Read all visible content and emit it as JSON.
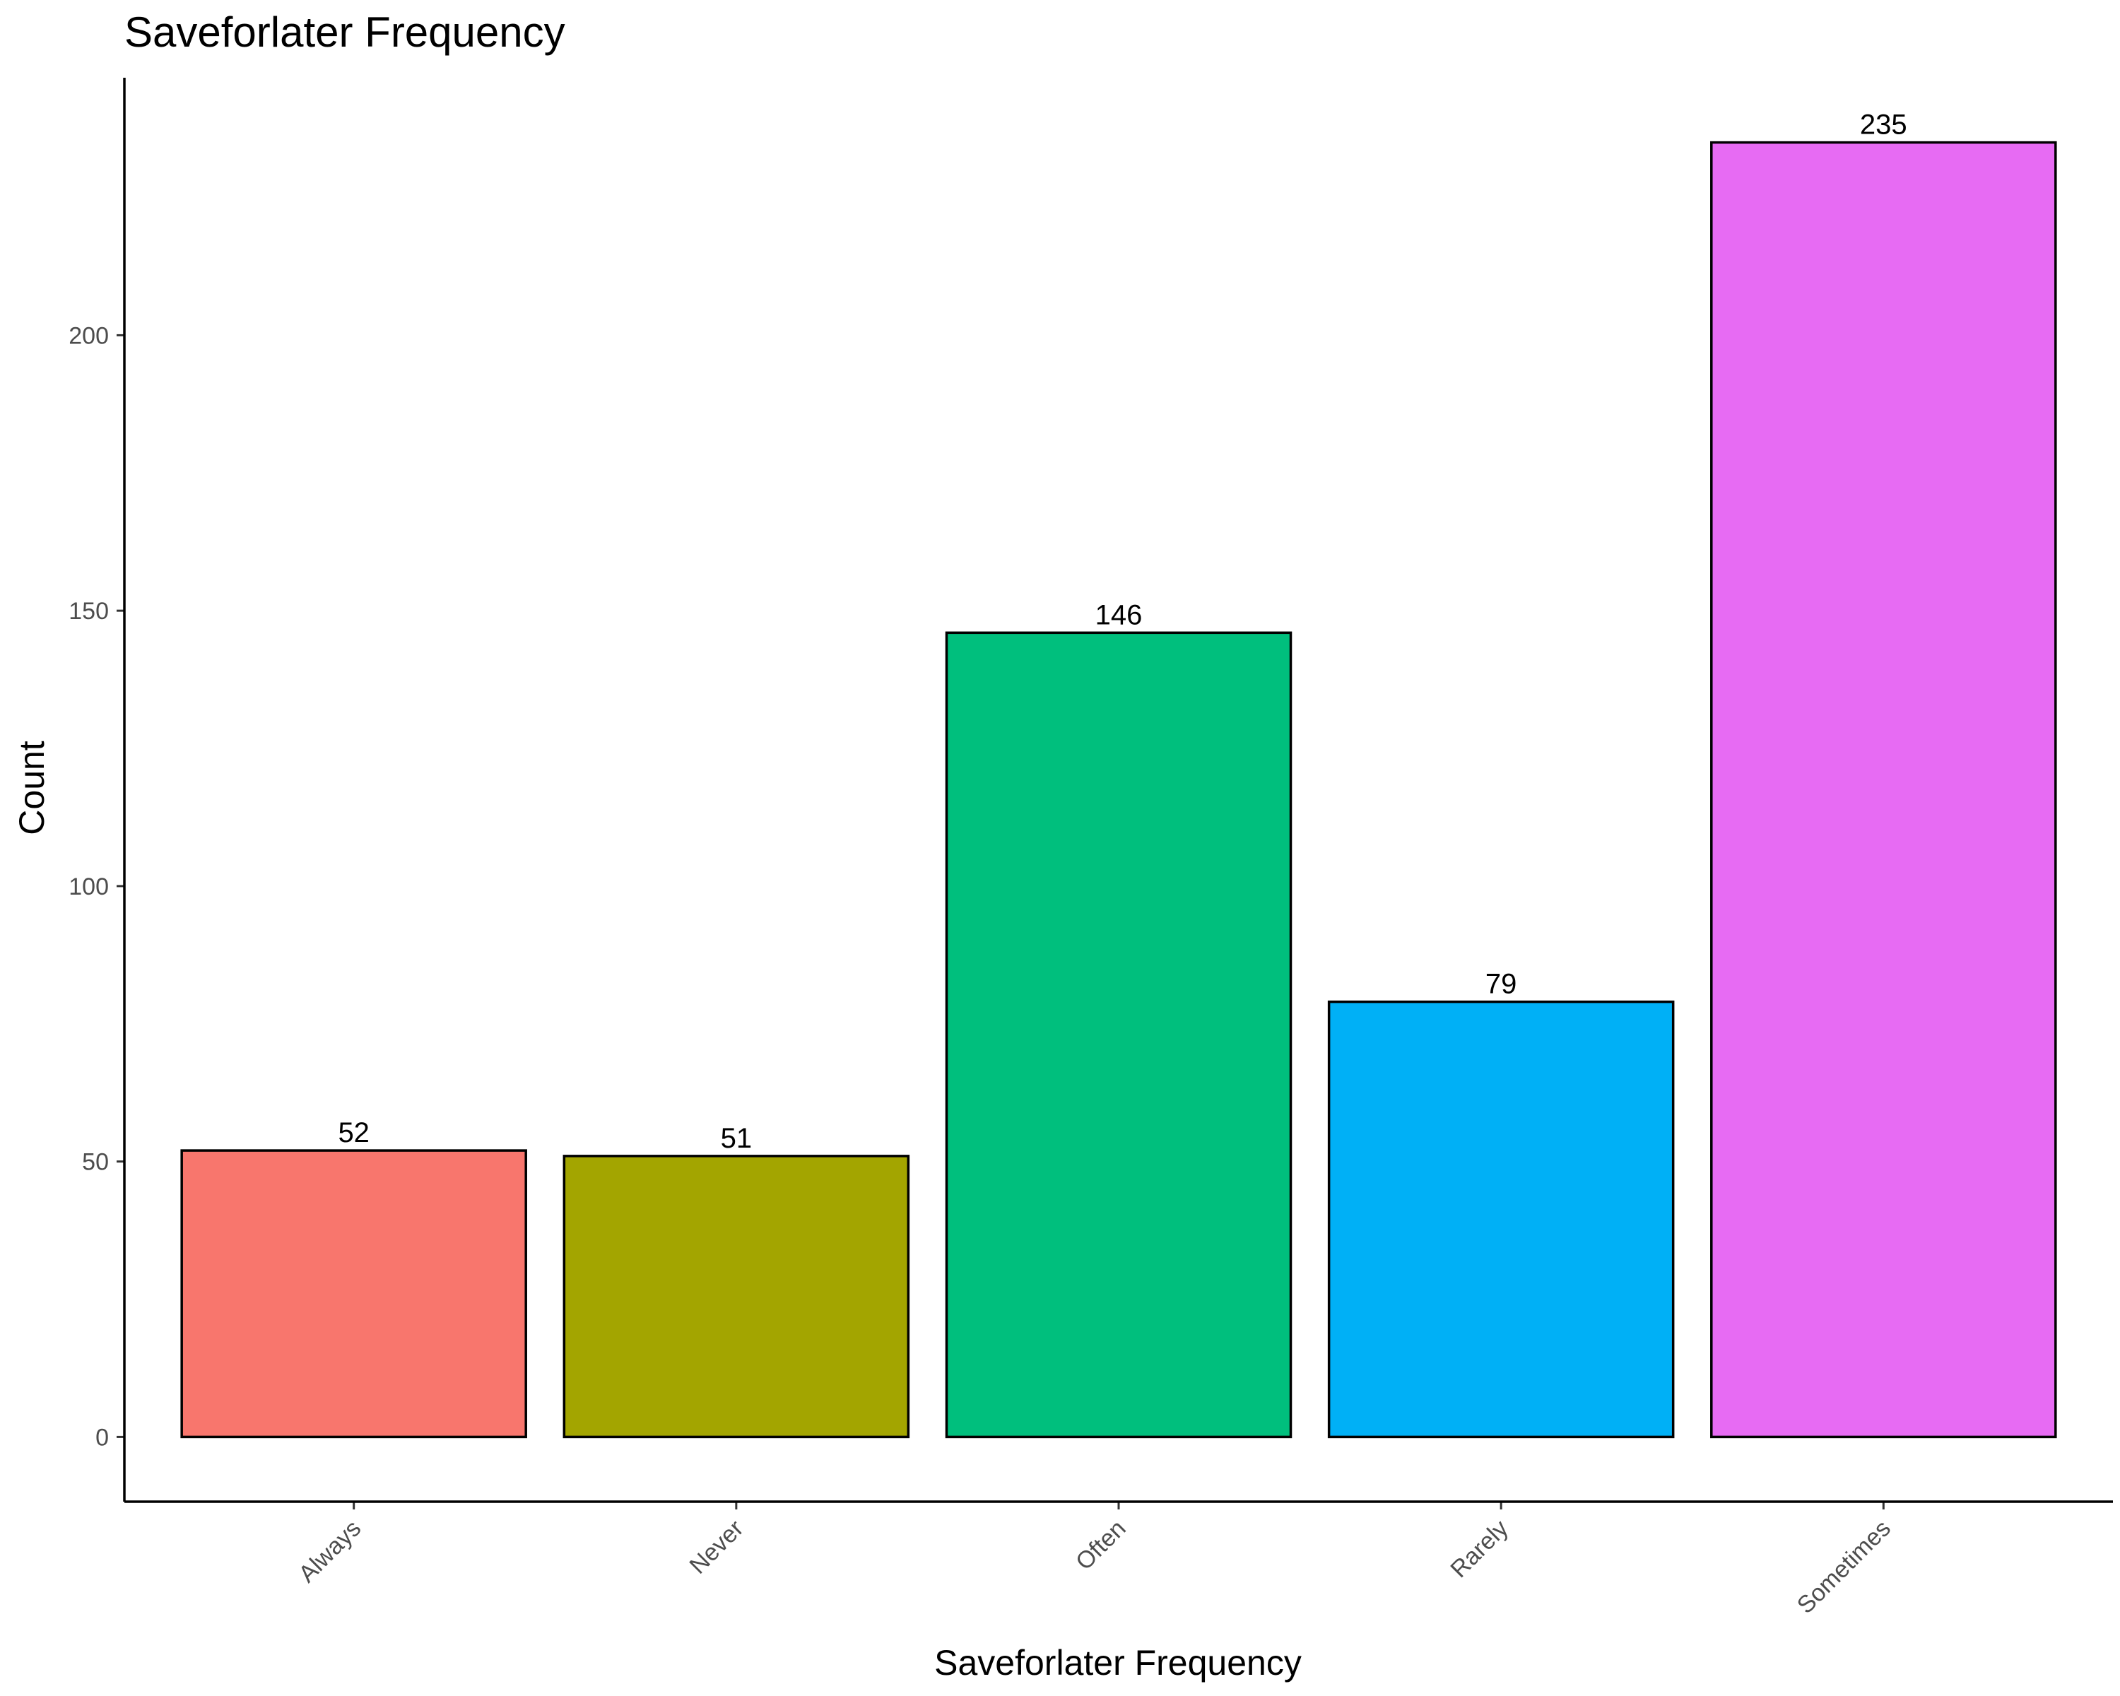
{
  "chart_data": {
    "type": "bar",
    "title": "Saveforlater Frequency",
    "xlabel": "Saveforlater Frequency",
    "ylabel": "Count",
    "categories": [
      "Always",
      "Never",
      "Often",
      "Rarely",
      "Sometimes"
    ],
    "values": [
      52,
      51,
      146,
      79,
      235
    ],
    "data_labels": [
      "52",
      "51",
      "146",
      "79",
      "235"
    ],
    "colors": [
      "#F8766D",
      "#A3A500",
      "#00BF7D",
      "#00B0F6",
      "#E76BF3"
    ],
    "bar_outline_color": "#000000",
    "y_ticks": [
      0,
      50,
      100,
      150,
      200
    ],
    "y_tick_labels": [
      "0",
      "50",
      "100",
      "150",
      "200"
    ],
    "ylim": [
      -11.75,
      246.75
    ],
    "grid": false,
    "legend": "none"
  }
}
